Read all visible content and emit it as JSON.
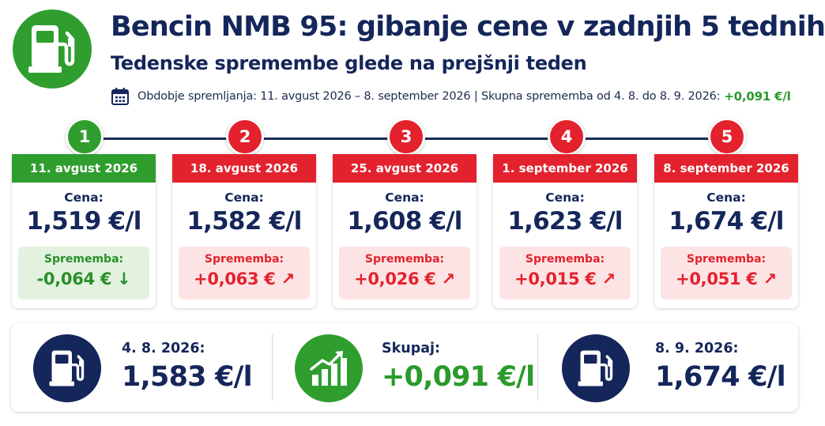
{
  "header": {
    "icon": "fuel-pump-icon",
    "title": "Bencin NMB 95: gibanje cene v zadnjih 5 tednih",
    "subtitle": "Tedenske spremembe glede na prejšnji teden",
    "meta_text": "Obdobje spremljanja: 11. avgust 2026 – 8. september 2026 | Skupna sprememba od 4. 8. do 8. 9. 2026:",
    "meta_total": "+0,091 €/l"
  },
  "colors": {
    "navy": "#14265a",
    "green": "#2f9e2f",
    "red": "#e3222e",
    "green_bg": "#e3f2df",
    "red_bg": "#fde4e4"
  },
  "weeks": [
    {
      "step": "1",
      "date": "11. avgust 2026",
      "price_label": "Cena:",
      "price": "1,519 €/l",
      "change_label": "Sprememba:",
      "change": "-0,064 € ↓",
      "trend": "down"
    },
    {
      "step": "2",
      "date": "18. avgust 2026",
      "price_label": "Cena:",
      "price": "1,582 €/l",
      "change_label": "Sprememba:",
      "change": "+0,063 € ↗",
      "trend": "up"
    },
    {
      "step": "3",
      "date": "25. avgust 2026",
      "price_label": "Cena:",
      "price": "1,608 €/l",
      "change_label": "Sprememba:",
      "change": "+0,026 € ↗",
      "trend": "up"
    },
    {
      "step": "4",
      "date": "1. september 2026",
      "price_label": "Cena:",
      "price": "1,623 €/l",
      "change_label": "Sprememba:",
      "change": "+0,015 € ↗",
      "trend": "up"
    },
    {
      "step": "5",
      "date": "8. september 2026",
      "price_label": "Cena:",
      "price": "1,674 €/l",
      "change_label": "Sprememba:",
      "change": "+0,051 € ↗",
      "trend": "up"
    }
  ],
  "summary": {
    "start": {
      "icon": "fuel-pump-icon",
      "label": "4. 8. 2026:",
      "value": "1,583 €/l"
    },
    "total": {
      "icon": "bar-chart-trend-icon",
      "label": "Skupaj:",
      "value": "+0,091 €/l"
    },
    "end": {
      "icon": "fuel-pump-icon",
      "label": "8. 9. 2026:",
      "value": "1,674 €/l"
    }
  }
}
